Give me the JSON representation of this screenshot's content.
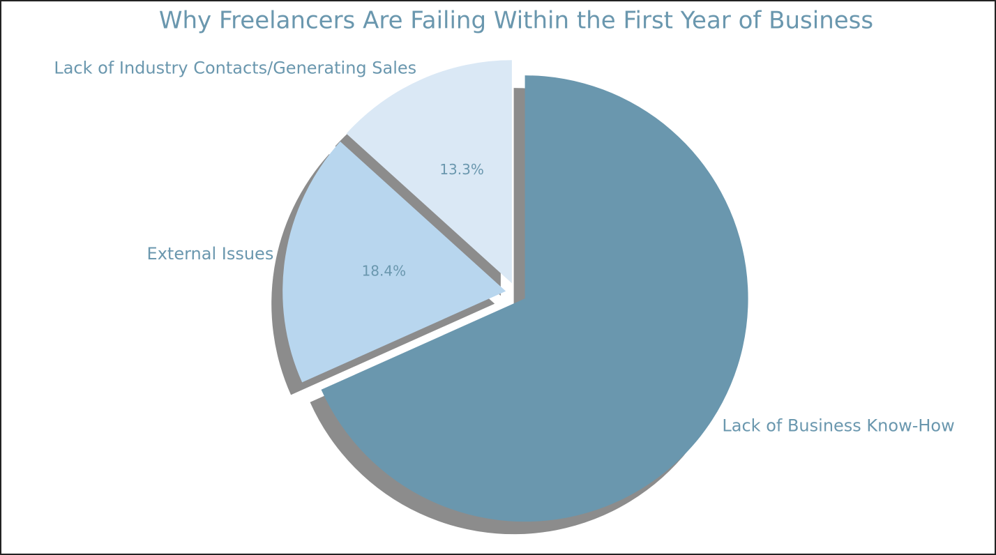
{
  "chart_data": {
    "type": "pie",
    "title": "Why Freelancers Are Failing Within the First Year of Business",
    "categories": [
      "Lack of Business Know-How",
      "External Issues",
      "Lack of Industry Contacts/Generating Sales"
    ],
    "values": [
      68.3,
      18.4,
      13.3
    ],
    "value_labels": [
      null,
      "18.4%",
      "13.3%"
    ],
    "colors": [
      "#6a97ae",
      "#b8d6ee",
      "#dae8f5"
    ],
    "startangle": 90
  }
}
